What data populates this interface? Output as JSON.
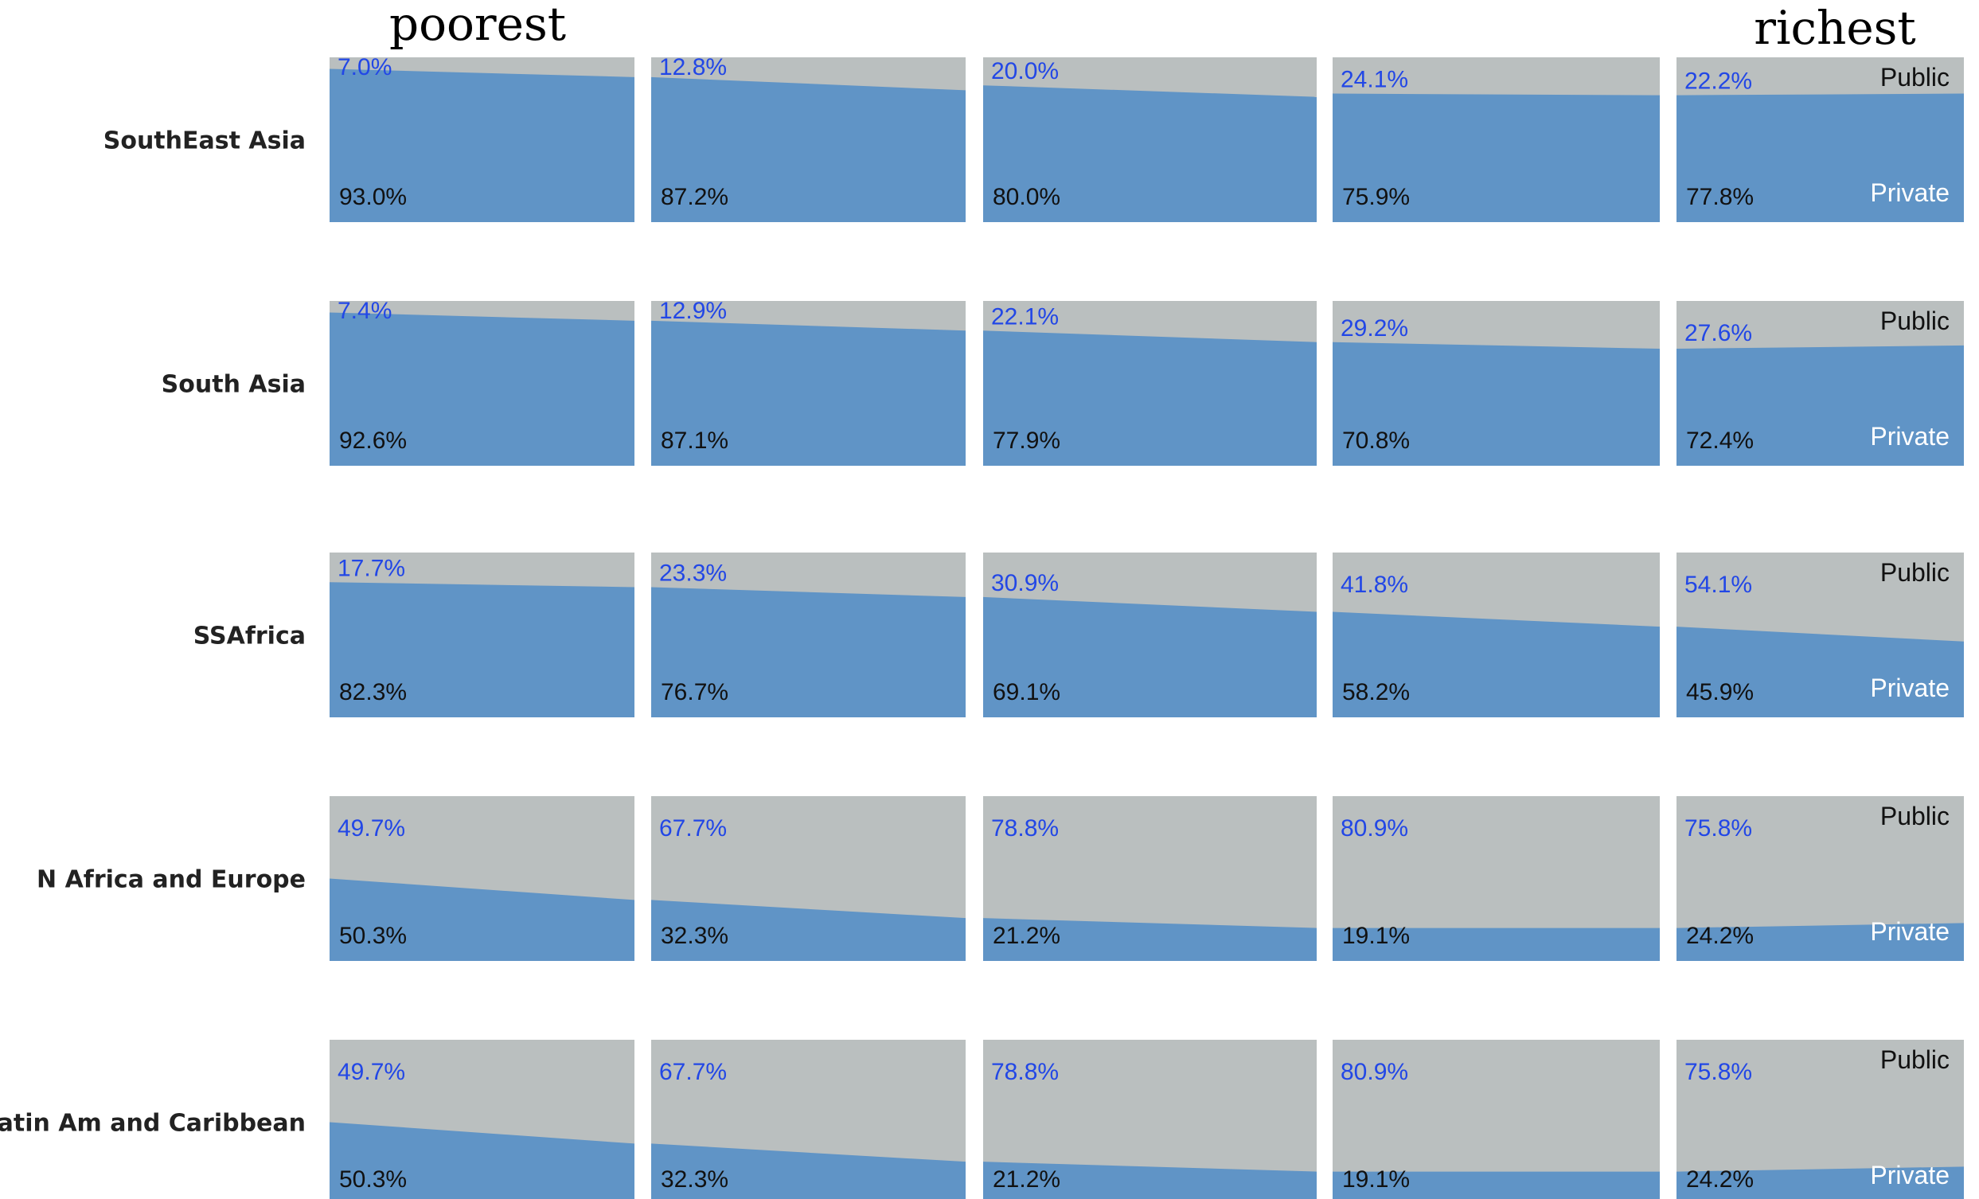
{
  "chart_data": {
    "type": "area",
    "headers": {
      "left": "poorest",
      "right": "richest"
    },
    "legend": {
      "public": "Public",
      "private": "Private"
    },
    "colors": {
      "public": "#babfbf",
      "private": "#6094c6"
    },
    "quintiles": 5,
    "rows": [
      {
        "name": "SouthEast Asia",
        "cells": [
          {
            "public": "7.0%",
            "private": "93.0%",
            "y": [
              0.07,
              0.12
            ]
          },
          {
            "public": "12.8%",
            "private": "87.2%",
            "y": [
              0.12,
              0.2
            ]
          },
          {
            "public": "20.0%",
            "private": "80.0%",
            "y": [
              0.17,
              0.24
            ]
          },
          {
            "public": "24.1%",
            "private": "75.9%",
            "y": [
              0.22,
              0.23
            ]
          },
          {
            "public": "22.2%",
            "private": "77.8%",
            "y": [
              0.23,
              0.22
            ]
          }
        ]
      },
      {
        "name": "South Asia",
        "cells": [
          {
            "public": "7.4%",
            "private": "92.6%",
            "y": [
              0.07,
              0.12
            ]
          },
          {
            "public": "12.9%",
            "private": "87.1%",
            "y": [
              0.12,
              0.18
            ]
          },
          {
            "public": "22.1%",
            "private": "77.9%",
            "y": [
              0.18,
              0.25
            ]
          },
          {
            "public": "29.2%",
            "private": "70.8%",
            "y": [
              0.25,
              0.29
            ]
          },
          {
            "public": "27.6%",
            "private": "72.4%",
            "y": [
              0.29,
              0.27
            ]
          }
        ]
      },
      {
        "name": "SSAfrica",
        "cells": [
          {
            "public": "17.7%",
            "private": "82.3%",
            "y": [
              0.18,
              0.21
            ]
          },
          {
            "public": "23.3%",
            "private": "76.7%",
            "y": [
              0.21,
              0.27
            ]
          },
          {
            "public": "30.9%",
            "private": "69.1%",
            "y": [
              0.27,
              0.36
            ]
          },
          {
            "public": "41.8%",
            "private": "58.2%",
            "y": [
              0.36,
              0.45
            ]
          },
          {
            "public": "54.1%",
            "private": "45.9%",
            "y": [
              0.45,
              0.54
            ]
          }
        ]
      },
      {
        "name": "N Africa and Europe",
        "cells": [
          {
            "public": "49.7%",
            "private": "50.3%",
            "y": [
              0.5,
              0.63
            ]
          },
          {
            "public": "67.7%",
            "private": "32.3%",
            "y": [
              0.63,
              0.74
            ]
          },
          {
            "public": "78.8%",
            "private": "21.2%",
            "y": [
              0.74,
              0.8
            ]
          },
          {
            "public": "80.9%",
            "private": "19.1%",
            "y": [
              0.8,
              0.8
            ]
          },
          {
            "public": "75.8%",
            "private": "24.2%",
            "y": [
              0.8,
              0.77
            ]
          }
        ]
      },
      {
        "name": "Latin Am and Caribbean",
        "cells": [
          {
            "public": "49.7%",
            "private": "50.3%",
            "y": [
              0.5,
              0.63
            ]
          },
          {
            "public": "67.7%",
            "private": "32.3%",
            "y": [
              0.63,
              0.74
            ]
          },
          {
            "public": "78.8%",
            "private": "21.2%",
            "y": [
              0.74,
              0.8
            ]
          },
          {
            "public": "80.9%",
            "private": "19.1%",
            "y": [
              0.8,
              0.8
            ]
          },
          {
            "public": "75.8%",
            "private": "24.2%",
            "y": [
              0.8,
              0.77
            ]
          }
        ]
      }
    ]
  }
}
